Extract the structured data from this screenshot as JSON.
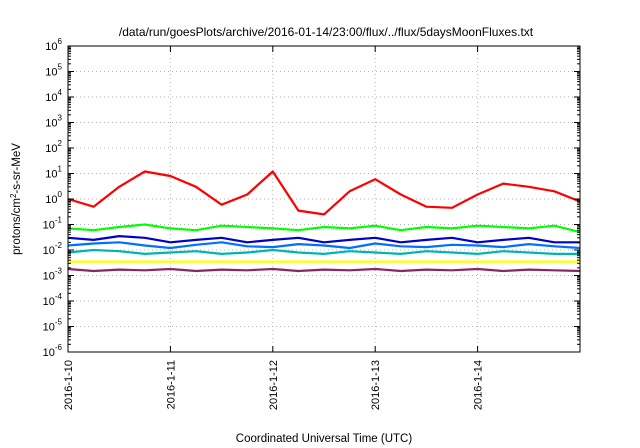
{
  "chart_data": {
    "type": "line",
    "title": "/data/run/goesPlots/archive/2016-01-14/23:00/flux/../flux/5daysMoonFluxes.txt",
    "xlabel": "Coordinated Universal Time (UTC)",
    "ylabel": "protons/cm2-s-sr-MeV",
    "yscale": "log",
    "ylim": [
      1e-06,
      1000000.0
    ],
    "xlim": [
      "2016-01-10",
      "2016-01-15"
    ],
    "grid": true,
    "x_tick_labels": [
      "2016-1-10",
      "2016-1-11",
      "2016-1-12",
      "2016-1-13",
      "2016-1-14"
    ],
    "y_tick_labels": [
      {
        "base": "10",
        "exp": "6"
      },
      {
        "base": "10",
        "exp": "5"
      },
      {
        "base": "10",
        "exp": "4"
      },
      {
        "base": "10",
        "exp": "3"
      },
      {
        "base": "10",
        "exp": "2"
      },
      {
        "base": "10",
        "exp": "1"
      },
      {
        "base": "10",
        "exp": "0"
      },
      {
        "base": "10",
        "exp": "-1"
      },
      {
        "base": "10",
        "exp": "-2"
      },
      {
        "base": "10",
        "exp": "-3"
      },
      {
        "base": "10",
        "exp": "-4"
      },
      {
        "base": "10",
        "exp": "-5"
      },
      {
        "base": "10",
        "exp": "-6"
      }
    ],
    "x_days": [
      0,
      0.25,
      0.5,
      0.75,
      1,
      1.25,
      1.5,
      1.75,
      2,
      2.25,
      2.5,
      2.75,
      3,
      3.25,
      3.5,
      3.75,
      4,
      4.25,
      4.5,
      4.75,
      5
    ],
    "series": [
      {
        "color": "#ff0000",
        "values": [
          1.0,
          0.5,
          3.0,
          12,
          8,
          3,
          0.6,
          1.5,
          12,
          0.35,
          0.25,
          2.0,
          6.0,
          1.5,
          0.5,
          0.45,
          1.5,
          4.0,
          3.0,
          2.0,
          0.8
        ]
      },
      {
        "color": "#00ff00",
        "values": [
          0.07,
          0.06,
          0.08,
          0.1,
          0.07,
          0.06,
          0.09,
          0.08,
          0.07,
          0.06,
          0.08,
          0.07,
          0.09,
          0.06,
          0.08,
          0.07,
          0.09,
          0.08,
          0.07,
          0.09,
          0.05
        ]
      },
      {
        "color": "#0000c8",
        "values": [
          0.03,
          0.025,
          0.035,
          0.03,
          0.02,
          0.025,
          0.03,
          0.02,
          0.025,
          0.03,
          0.02,
          0.025,
          0.03,
          0.02,
          0.025,
          0.03,
          0.02,
          0.025,
          0.03,
          0.02,
          0.02
        ]
      },
      {
        "color": "#0070ff",
        "values": [
          0.015,
          0.018,
          0.02,
          0.015,
          0.012,
          0.016,
          0.02,
          0.014,
          0.013,
          0.017,
          0.015,
          0.012,
          0.018,
          0.014,
          0.013,
          0.016,
          0.015,
          0.013,
          0.017,
          0.014,
          0.012
        ]
      },
      {
        "color": "#00b4b4",
        "values": [
          0.008,
          0.01,
          0.009,
          0.007,
          0.008,
          0.009,
          0.007,
          0.008,
          0.01,
          0.008,
          0.007,
          0.009,
          0.008,
          0.007,
          0.009,
          0.008,
          0.007,
          0.009,
          0.008,
          0.007,
          0.007
        ]
      },
      {
        "color": "#ffff00",
        "values": [
          0.0035,
          0.0035,
          0.0035,
          0.0035,
          0.0035,
          0.0035,
          0.0035,
          0.0035,
          0.0035,
          0.0035,
          0.0035,
          0.0035,
          0.0035,
          0.0035,
          0.0035,
          0.0035,
          0.0035,
          0.0035,
          0.0035,
          0.0035,
          0.0035
        ]
      },
      {
        "color": "#8b2565",
        "values": [
          0.0018,
          0.0015,
          0.0017,
          0.0016,
          0.0018,
          0.0015,
          0.0017,
          0.0016,
          0.0018,
          0.0015,
          0.0017,
          0.0016,
          0.0018,
          0.0015,
          0.0017,
          0.0016,
          0.0018,
          0.0015,
          0.0017,
          0.0016,
          0.0015
        ]
      }
    ]
  }
}
